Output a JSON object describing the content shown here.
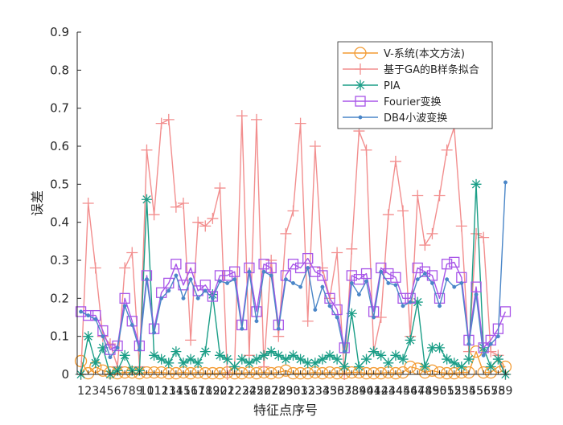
{
  "chart_data": {
    "type": "line",
    "xlabel": "特征点序号",
    "ylabel": "误差",
    "xlim": [
      0.5,
      59.5
    ],
    "ylim": [
      0,
      0.9
    ],
    "yticks": [
      "0",
      "0.1",
      "0.2",
      "0.3",
      "0.4",
      "0.5",
      "0.6",
      "0.7",
      "0.8",
      "0.9"
    ],
    "categories": [
      "1",
      "2",
      "3",
      "4",
      "5",
      "6",
      "7",
      "8",
      "9",
      "10",
      "11",
      "12",
      "13",
      "14",
      "15",
      "16",
      "17",
      "18",
      "19",
      "20",
      "21",
      "22",
      "23",
      "24",
      "25",
      "26",
      "27",
      "28",
      "29",
      "30",
      "31",
      "32",
      "33",
      "34",
      "35",
      "36",
      "37",
      "38",
      "39",
      "40",
      "41",
      "42",
      "43",
      "44",
      "45",
      "46",
      "47",
      "48",
      "49",
      "50",
      "51",
      "52",
      "53",
      "54",
      "55",
      "56",
      "57",
      "58",
      "59"
    ],
    "x": [
      1,
      2,
      3,
      4,
      5,
      6,
      7,
      8,
      9,
      10,
      11,
      12,
      13,
      14,
      15,
      16,
      17,
      18,
      19,
      20,
      21,
      22,
      23,
      24,
      25,
      26,
      27,
      28,
      29,
      30,
      31,
      32,
      33,
      34,
      35,
      36,
      37,
      38,
      39,
      40,
      41,
      42,
      43,
      44,
      45,
      46,
      47,
      48,
      49,
      50,
      51,
      52,
      53,
      54,
      55,
      56,
      57,
      58,
      59
    ],
    "grid": false,
    "legend_position": "top-right",
    "series": [
      {
        "name": "V-系统(本文方法)",
        "color": "#F39C34",
        "marker": "circle",
        "values": [
          0.035,
          0.003,
          0.02,
          0.01,
          0.005,
          0.003,
          0.005,
          0.005,
          0.003,
          0.005,
          0.005,
          0.005,
          0.003,
          0.003,
          0.005,
          0.003,
          0.005,
          0.003,
          0.003,
          0.003,
          0.005,
          0.003,
          0.003,
          0.005,
          0.003,
          0.005,
          0.003,
          0.005,
          0.01,
          0.003,
          0.003,
          0.003,
          0.005,
          0.003,
          0.005,
          0.003,
          0.003,
          0.005,
          0.005,
          0.003,
          0.003,
          0.003,
          0.005,
          0.003,
          0.005,
          0.02,
          0.015,
          0.005,
          0.01,
          0.005,
          0.003,
          0.003,
          0.005,
          0.005,
          0.06,
          0.005,
          0.005,
          0.02,
          0.02
        ]
      },
      {
        "name": "基于GA的B样条拟合",
        "color": "#F28E8E",
        "marker": "plus",
        "values": [
          0.0,
          0.45,
          0.28,
          0.1,
          0.08,
          0.02,
          0.28,
          0.32,
          0.02,
          0.59,
          0.42,
          0.66,
          0.67,
          0.44,
          0.45,
          0.09,
          0.4,
          0.39,
          0.41,
          0.49,
          0.0,
          0.02,
          0.68,
          0.05,
          0.67,
          0.02,
          0.3,
          0.1,
          0.37,
          0.43,
          0.66,
          0.14,
          0.6,
          0.28,
          0.2,
          0.32,
          0.0,
          0.33,
          0.64,
          0.59,
          0.06,
          0.15,
          0.42,
          0.56,
          0.43,
          0.1,
          0.47,
          0.34,
          0.37,
          0.47,
          0.59,
          0.65,
          0.39,
          0.06,
          0.37,
          0.36,
          0.06,
          0.05,
          0.0
        ]
      },
      {
        "name": "PIA",
        "color": "#1B9E87",
        "marker": "star",
        "values": [
          0.0,
          0.1,
          0.03,
          0.07,
          0.0,
          0.01,
          0.05,
          0.01,
          0.01,
          0.46,
          0.05,
          0.04,
          0.03,
          0.06,
          0.03,
          0.04,
          0.03,
          0.06,
          0.21,
          0.05,
          0.04,
          0.02,
          0.04,
          0.03,
          0.04,
          0.05,
          0.06,
          0.05,
          0.04,
          0.05,
          0.04,
          0.03,
          0.03,
          0.04,
          0.05,
          0.04,
          0.02,
          0.16,
          0.02,
          0.04,
          0.06,
          0.05,
          0.03,
          0.05,
          0.04,
          0.09,
          0.19,
          0.02,
          0.07,
          0.07,
          0.04,
          0.03,
          0.02,
          0.04,
          0.5,
          0.07,
          0.02,
          0.04,
          0.0
        ]
      },
      {
        "name": "Fourier变换",
        "color": "#A855E8",
        "marker": "square",
        "values": [
          0.165,
          0.155,
          0.155,
          0.115,
          0.065,
          0.075,
          0.2,
          0.14,
          0.075,
          0.26,
          0.12,
          0.215,
          0.24,
          0.29,
          0.235,
          0.28,
          0.22,
          0.235,
          0.205,
          0.26,
          0.26,
          0.27,
          0.13,
          0.28,
          0.165,
          0.29,
          0.28,
          0.13,
          0.26,
          0.29,
          0.28,
          0.305,
          0.27,
          0.26,
          0.2,
          0.17,
          0.07,
          0.26,
          0.25,
          0.265,
          0.165,
          0.28,
          0.265,
          0.255,
          0.2,
          0.2,
          0.28,
          0.27,
          0.26,
          0.2,
          0.29,
          0.295,
          0.255,
          0.09,
          0.23,
          0.07,
          0.09,
          0.12,
          0.165
        ]
      },
      {
        "name": "DB4小波变换",
        "color": "#4A86C8",
        "marker": "dot",
        "values": [
          0.165,
          0.155,
          0.145,
          0.1,
          0.045,
          0.07,
          0.18,
          0.13,
          0.065,
          0.25,
          0.11,
          0.2,
          0.22,
          0.26,
          0.2,
          0.25,
          0.2,
          0.22,
          0.2,
          0.245,
          0.24,
          0.25,
          0.12,
          0.27,
          0.14,
          0.27,
          0.26,
          0.12,
          0.25,
          0.24,
          0.23,
          0.28,
          0.17,
          0.23,
          0.18,
          0.15,
          0.06,
          0.24,
          0.21,
          0.245,
          0.15,
          0.27,
          0.24,
          0.235,
          0.18,
          0.19,
          0.25,
          0.265,
          0.24,
          0.18,
          0.25,
          0.23,
          0.24,
          0.08,
          0.21,
          0.05,
          0.08,
          0.1,
          0.505
        ]
      }
    ]
  }
}
